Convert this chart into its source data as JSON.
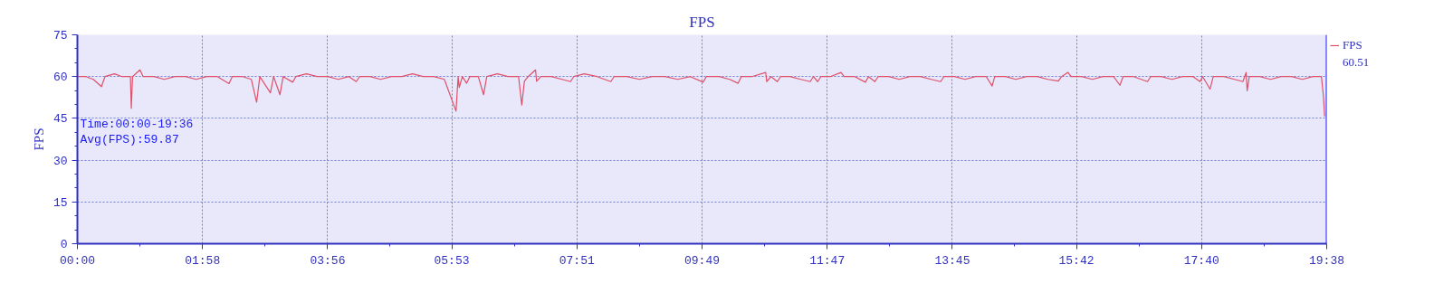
{
  "chart_data": {
    "type": "line",
    "title": "FPS",
    "ylabel": "FPS",
    "xlim": [
      0,
      1178
    ],
    "ylim": [
      0,
      75
    ],
    "yticks": [
      0,
      15,
      30,
      45,
      60,
      75
    ],
    "xticks": [
      {
        "value": 0,
        "label": "00:00"
      },
      {
        "value": 118,
        "label": "01:58"
      },
      {
        "value": 236,
        "label": "03:56"
      },
      {
        "value": 353,
        "label": "05:53"
      },
      {
        "value": 471,
        "label": "07:51"
      },
      {
        "value": 589,
        "label": "09:49"
      },
      {
        "value": 707,
        "label": "11:47"
      },
      {
        "value": 825,
        "label": "13:45"
      },
      {
        "value": 942,
        "label": "15:42"
      },
      {
        "value": 1060,
        "label": "17:40"
      },
      {
        "value": 1178,
        "label": "19:38"
      }
    ],
    "grid": true,
    "legend": "top right",
    "marker": "none",
    "line_style": "solid",
    "annotations": [
      "Time:00:00-19:36",
      "Avg(FPS):59.87",
      "60.51"
    ],
    "series": [
      {
        "name": "FPS",
        "color": "#e0506a",
        "x": [
          0,
          8,
          15,
          22.7,
          26,
          35,
          42,
          50,
          50.8,
          52,
          59,
          62,
          72,
          82,
          92,
          102,
          112,
          122,
          132,
          143,
          146,
          156,
          164,
          169,
          172,
          182,
          185,
          191,
          194,
          203,
          206,
          216,
          226,
          236,
          246,
          256,
          263,
          266,
          276,
          286,
          296,
          306,
          316,
          326,
          336,
          346,
          357,
          359,
          360,
          363,
          367,
          370,
          378,
          383,
          386,
          396,
          406,
          416,
          419,
          421.5,
          425,
          432,
          433,
          437,
          447,
          457,
          465,
          468,
          478,
          490,
          503,
          506,
          518,
          530,
          542,
          554,
          566,
          578,
          590,
          593,
          605,
          615,
          623,
          626,
          636,
          649,
          650,
          654,
          660,
          663,
          672,
          682,
          691,
          694,
          698,
          701,
          710,
          720,
          723,
          733,
          743,
          746,
          752,
          755,
          765,
          775,
          785,
          795,
          805,
          814,
          817,
          827,
          837,
          847,
          857,
          862.5,
          865,
          875,
          885,
          895,
          905,
          915,
          925,
          928,
          934,
          937,
          947,
          957,
          967,
          977,
          983,
          986,
          996,
          1009,
          1012,
          1022,
          1032,
          1042,
          1052,
          1058.6,
          1061,
          1068,
          1071,
          1081,
          1091,
          1099,
          1102,
          1103,
          1105,
          1115,
          1125,
          1135,
          1145,
          1155,
          1165,
          1173,
          1175,
          1176
        ],
        "values": [
          60,
          60,
          59,
          56.4,
          60,
          61,
          60,
          60,
          48.6,
          60,
          62.4,
          60,
          60,
          59,
          60,
          60,
          59,
          60,
          60,
          57.5,
          60,
          60,
          59,
          50.8,
          60,
          54.2,
          60,
          53.5,
          60,
          58,
          60,
          61,
          60,
          60,
          59,
          60,
          58.2,
          60,
          60,
          59,
          60,
          60,
          61,
          60,
          60,
          59,
          47.6,
          60,
          56.1,
          60,
          57.6,
          60,
          60,
          53.5,
          60,
          61,
          60,
          60,
          49.8,
          58.3,
          60,
          62.4,
          58.3,
          60,
          60,
          59,
          58.2,
          60,
          61,
          60,
          58.2,
          60,
          60,
          59,
          60,
          60,
          59,
          60,
          58,
          60,
          60,
          59,
          57.6,
          60,
          60,
          61.5,
          58.2,
          60,
          58.2,
          60,
          60,
          59,
          58.2,
          60,
          58.2,
          60,
          60,
          61.5,
          60,
          60,
          58,
          60,
          58.2,
          60,
          60,
          59,
          60,
          60,
          59,
          58.2,
          60,
          60,
          59,
          60,
          60,
          56.6,
          60,
          60,
          59,
          60,
          60,
          59,
          58.4,
          60,
          61.5,
          60,
          60,
          59,
          60,
          60,
          56.9,
          60,
          60,
          58.2,
          60,
          60,
          59,
          60,
          60,
          58.2,
          60,
          55.5,
          60,
          60,
          59,
          58.2,
          61.5,
          54.9,
          60,
          60,
          59,
          60,
          60,
          59,
          60,
          60,
          52.6,
          45.7
        ]
      }
    ]
  }
}
